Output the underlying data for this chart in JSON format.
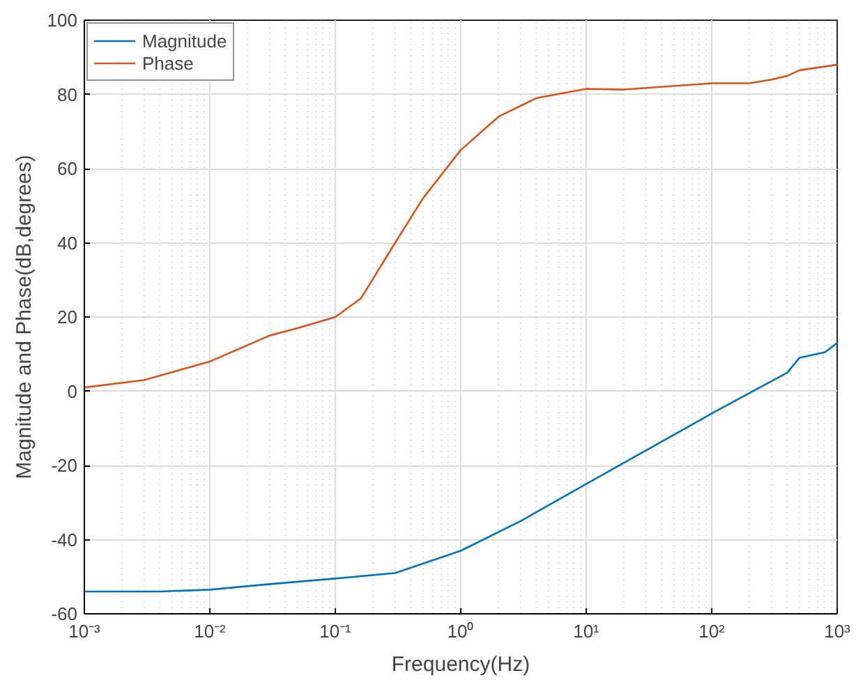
{
  "chart_data": {
    "type": "line",
    "xlabel": "Frequency(Hz)",
    "ylabel": "Magnitude and Phase(dB,degrees)",
    "log": "x",
    "grid": true,
    "legend": "top left",
    "line_style": "solid",
    "marker": "none",
    "xlim": [
      0.001,
      1000
    ],
    "ylim": [
      -60,
      100
    ],
    "xticks": [
      {
        "value": 0.001,
        "label": "10⁻³"
      },
      {
        "value": 0.01,
        "label": "10⁻²"
      },
      {
        "value": 0.1,
        "label": "10⁻¹"
      },
      {
        "value": 1,
        "label": "10⁰"
      },
      {
        "value": 10,
        "label": "10¹"
      },
      {
        "value": 100,
        "label": "10²"
      },
      {
        "value": 1000,
        "label": "10³"
      }
    ],
    "yticks": [
      -60,
      -40,
      -20,
      0,
      20,
      40,
      60,
      80,
      100
    ],
    "series": [
      {
        "name": "Magnitude",
        "color": "#0072bd",
        "x": [
          0.001,
          0.004,
          0.01,
          0.03,
          0.1,
          0.3,
          1,
          3,
          10,
          100,
          400,
          500,
          800,
          1000
        ],
        "values": [
          -54,
          -54,
          -53.5,
          -52,
          -50.5,
          -49,
          -43,
          -35,
          -25,
          -6,
          5,
          9,
          10.5,
          13
        ]
      },
      {
        "name": "Phase",
        "color": "#d95319",
        "x": [
          0.001,
          0.003,
          0.01,
          0.03,
          0.05,
          0.1,
          0.16,
          0.3,
          0.5,
          1,
          2,
          4,
          10,
          20,
          100,
          200,
          300,
          400,
          500,
          1000
        ],
        "values": [
          1,
          3,
          8,
          15,
          17,
          20,
          25,
          40,
          52,
          65,
          74,
          79,
          81.5,
          81.3,
          83,
          83,
          84,
          85,
          86.5,
          88
        ]
      }
    ]
  }
}
